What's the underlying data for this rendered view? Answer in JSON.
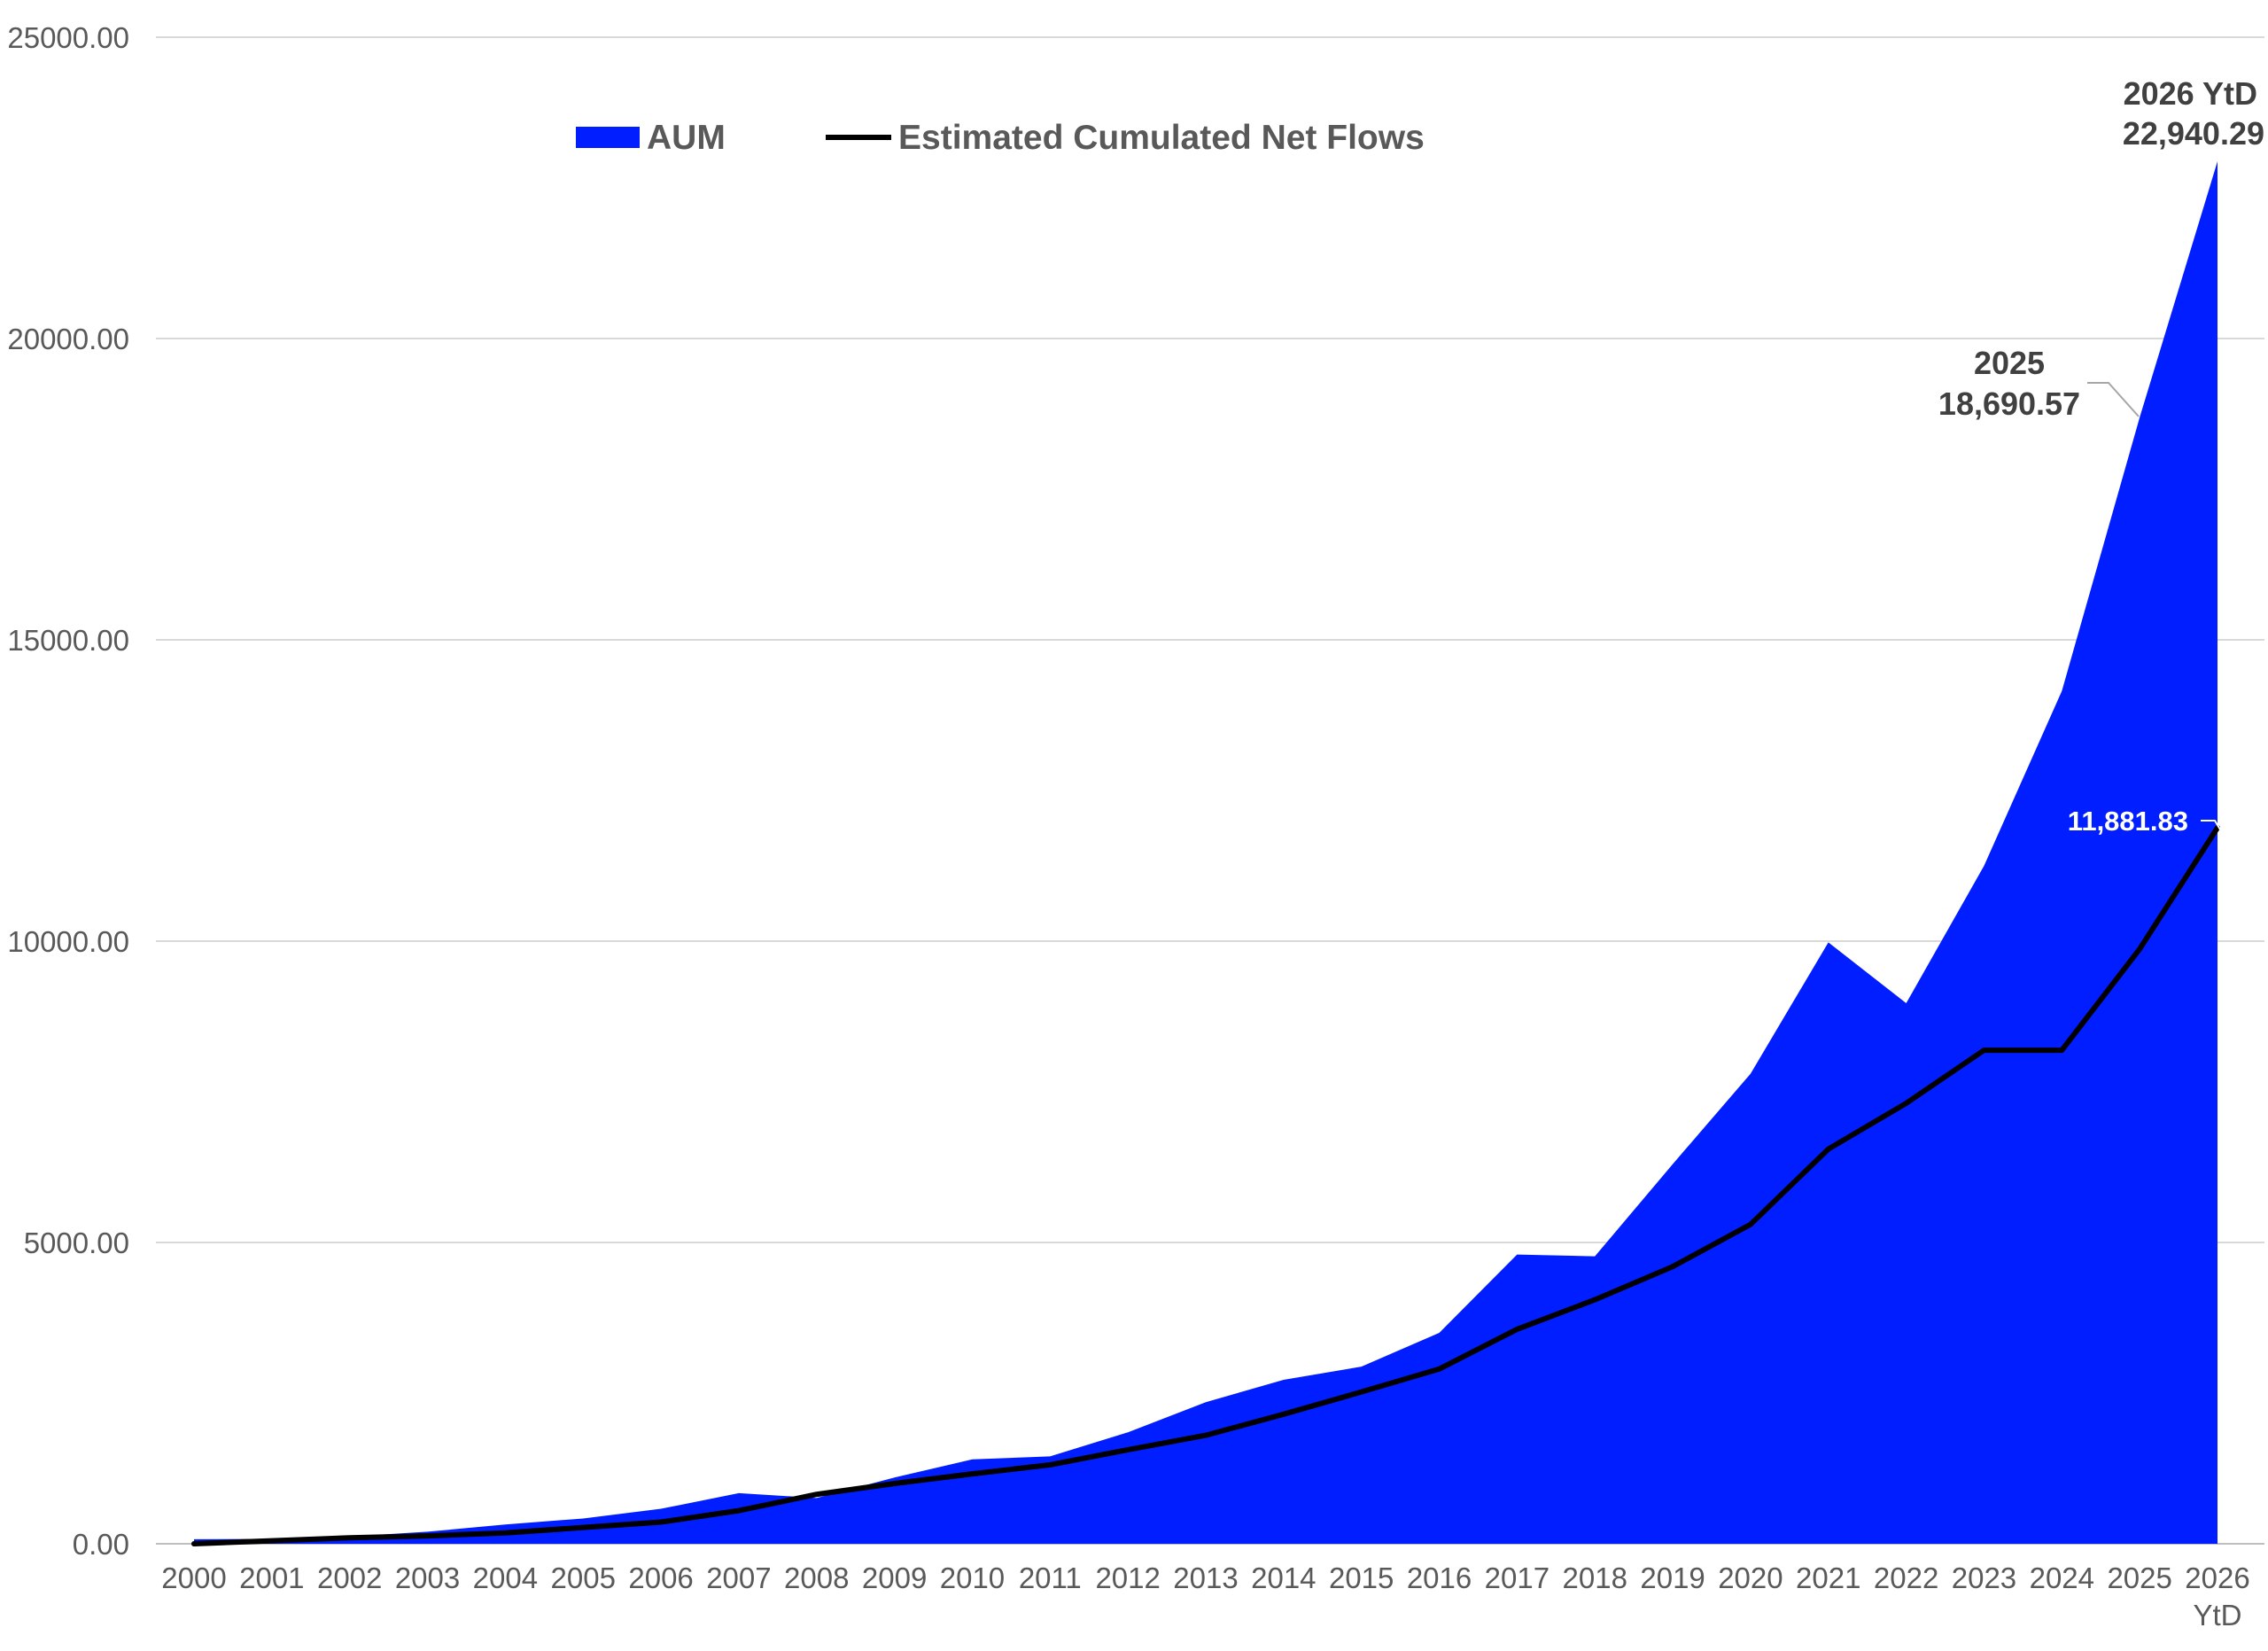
{
  "chart_data": {
    "type": "area",
    "title": "",
    "xlabel": "",
    "ylabel": "",
    "ylim": [
      0,
      25000
    ],
    "yticks": [
      "0.00",
      "5000.00",
      "10000.00",
      "15000.00",
      "20000.00",
      "25000.00"
    ],
    "ytick_values": [
      0,
      5000,
      10000,
      15000,
      20000,
      25000
    ],
    "categories": [
      "2000",
      "2001",
      "2002",
      "2003",
      "2004",
      "2005",
      "2006",
      "2007",
      "2008",
      "2009",
      "2010",
      "2011",
      "2012",
      "2013",
      "2014",
      "2015",
      "2016",
      "2017",
      "2018",
      "2019",
      "2020",
      "2021",
      "2022",
      "2023",
      "2024",
      "2025",
      "2026"
    ],
    "last_category_suffix": "YtD",
    "grid": true,
    "legend_position": "top-left",
    "series": [
      {
        "name": "AUM",
        "kind": "area",
        "color": "#001eff",
        "values": [
          75,
          80,
          120,
          200,
          320,
          420,
          580,
          840,
          760,
          1100,
          1400,
          1450,
          1850,
          2350,
          2720,
          2940,
          3500,
          4800,
          4770,
          6300,
          7800,
          9980,
          8970,
          11250,
          14150,
          18690.57,
          22940.29
        ]
      },
      {
        "name": "Estimated Cumulated Net Flows",
        "kind": "line",
        "color": "#000000",
        "values": [
          0,
          50,
          100,
          130,
          180,
          270,
          360,
          550,
          820,
          1000,
          1160,
          1310,
          1560,
          1800,
          2150,
          2520,
          2900,
          3560,
          4050,
          4600,
          5300,
          6550,
          7310,
          8190,
          8190,
          9870,
          11881.83
        ]
      }
    ],
    "annotations": [
      {
        "line1": "2026 YtD",
        "line2": "22,940.29",
        "series": "AUM",
        "index": 26
      },
      {
        "line1": "2025",
        "line2": "18,690.57",
        "series": "AUM",
        "index": 25
      },
      {
        "text": "11,881.83",
        "series": "Estimated Cumulated Net Flows",
        "index": 26
      }
    ]
  }
}
